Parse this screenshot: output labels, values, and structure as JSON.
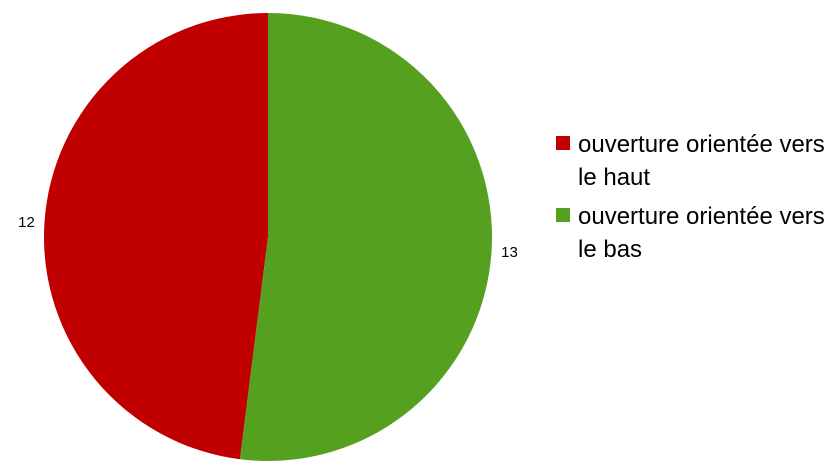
{
  "chart_data": {
    "type": "pie",
    "title": "",
    "slices": [
      {
        "label": "ouverture orientée vers le haut",
        "value": 12,
        "color": "#c00000"
      },
      {
        "label": "ouverture orientée vers le bas",
        "value": 13,
        "color": "#56a01f"
      }
    ],
    "start_angle_deg": 0,
    "direction": "counterclockwise",
    "data_labels": [
      "12",
      "13"
    ],
    "legend": {
      "placement": "right",
      "items": [
        {
          "text": "ouverture orientée vers le haut",
          "color": "#c00000"
        },
        {
          "text": "ouverture orientée vers le bas",
          "color": "#56a01f"
        }
      ]
    }
  }
}
